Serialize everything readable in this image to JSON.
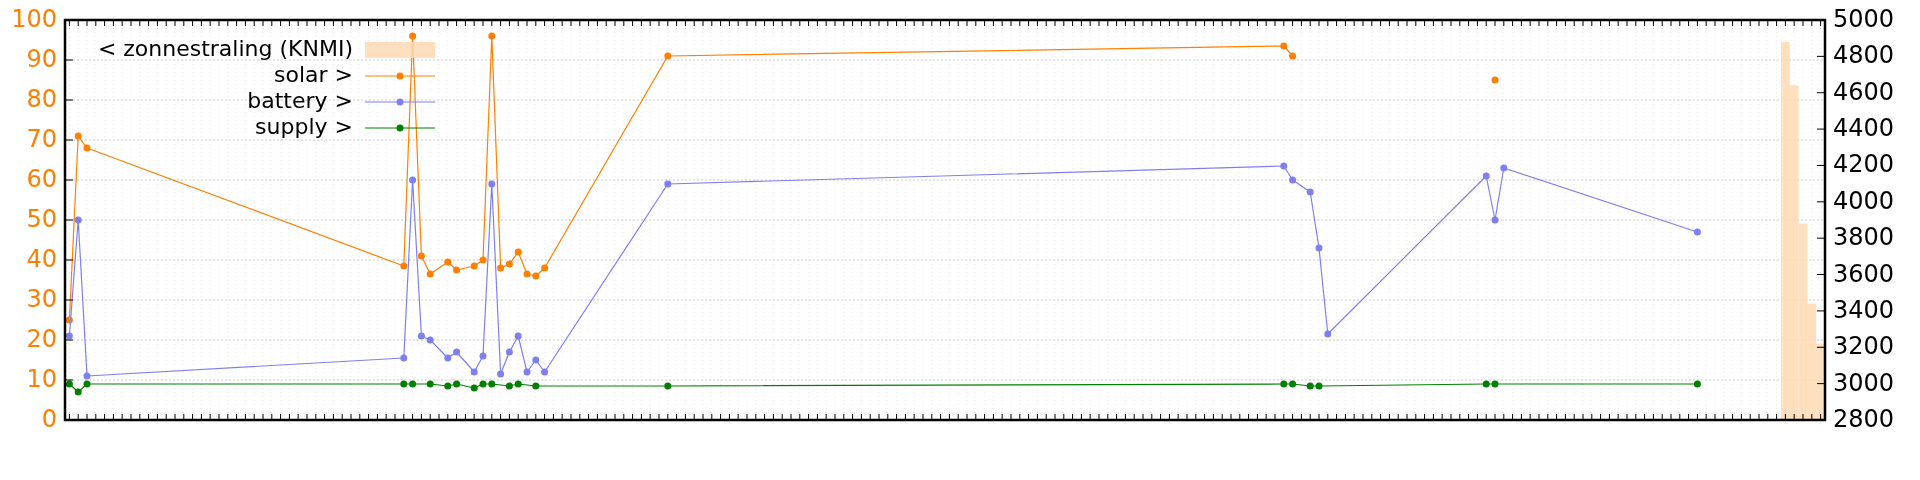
{
  "chart_data": {
    "type": "line",
    "categories": [
      null,
      null,
      null,
      null,
      null,
      null,
      null,
      null,
      null,
      null,
      null,
      null,
      null,
      null,
      null,
      null,
      null,
      null,
      null,
      null,
      null,
      null,
      null,
      null,
      null,
      null,
      null,
      null,
      null,
      null,
      null,
      null,
      null,
      null,
      null,
      null,
      null,
      null,
      null,
      null,
      null,
      null,
      null,
      null,
      null,
      null,
      null,
      null,
      null,
      null,
      null,
      null,
      null,
      null,
      null,
      null,
      null,
      null,
      null,
      null,
      null,
      null,
      null,
      null,
      null,
      null,
      null,
      null,
      null,
      null,
      null,
      null,
      null,
      null,
      null,
      null,
      null,
      null,
      null,
      null,
      null,
      null,
      null,
      null,
      null,
      null,
      null,
      null,
      null,
      null,
      null,
      null,
      null,
      null,
      null,
      null,
      null,
      null,
      null,
      null,
      null,
      null,
      null,
      null,
      null,
      null,
      null,
      null,
      null,
      null,
      null,
      null,
      null,
      null,
      null,
      null,
      null,
      null,
      null,
      null,
      null,
      null,
      null,
      null,
      null,
      null,
      null,
      null,
      null,
      null,
      null,
      null,
      null,
      null,
      null,
      null,
      null,
      null,
      null,
      null,
      null,
      null,
      null,
      null,
      null,
      null,
      null,
      null,
      null,
      null,
      null,
      null,
      null,
      null,
      null,
      null,
      null,
      null,
      null,
      null,
      null,
      null,
      null,
      null,
      null,
      null,
      null,
      null,
      null,
      null,
      null,
      null,
      null,
      null,
      null,
      null,
      null,
      null,
      null,
      null,
      null,
      null,
      null,
      null,
      null,
      null,
      null,
      null,
      null,
      null,
      null,
      null,
      null,
      null,
      null,
      null,
      null,
      null,
      null,
      null
    ],
    "series": [
      {
        "name": "< zonnestraling (KNMI)",
        "type": "bar",
        "axis": "y2",
        "color": "#ffd9b3",
        "values": [
          null,
          null,
          null,
          null,
          null,
          null,
          null,
          null,
          null,
          null,
          null,
          null,
          null,
          null,
          null,
          null,
          null,
          null,
          null,
          null,
          null,
          null,
          null,
          null,
          null,
          null,
          null,
          null,
          null,
          null,
          null,
          null,
          null,
          null,
          null,
          null,
          null,
          null,
          null,
          null,
          null,
          null,
          null,
          null,
          null,
          null,
          null,
          null,
          null,
          null,
          null,
          null,
          null,
          null,
          null,
          null,
          null,
          null,
          null,
          null,
          null,
          null,
          null,
          null,
          null,
          null,
          null,
          null,
          null,
          null,
          null,
          null,
          null,
          null,
          null,
          null,
          null,
          null,
          null,
          null,
          null,
          null,
          null,
          null,
          null,
          null,
          null,
          null,
          null,
          null,
          null,
          null,
          null,
          null,
          null,
          null,
          null,
          null,
          null,
          null,
          null,
          null,
          null,
          null,
          null,
          null,
          null,
          null,
          null,
          null,
          null,
          null,
          null,
          null,
          null,
          null,
          null,
          null,
          null,
          null,
          null,
          null,
          null,
          null,
          null,
          null,
          null,
          null,
          null,
          null,
          null,
          null,
          null,
          null,
          null,
          null,
          null,
          null,
          null,
          null,
          null,
          null,
          null,
          null,
          null,
          null,
          null,
          null,
          null,
          null,
          null,
          null,
          null,
          null,
          null,
          null,
          null,
          null,
          null,
          null,
          null,
          null,
          null,
          null,
          null,
          null,
          null,
          null,
          null,
          null,
          null,
          null,
          null,
          null,
          null,
          null,
          null,
          null,
          null,
          null,
          null,
          null,
          null,
          null,
          null,
          null,
          null,
          null,
          null,
          null,
          null,
          null,
          null,
          null,
          null,
          4880,
          4640,
          3880,
          3440,
          3220
        ]
      },
      {
        "name": "solar >",
        "color": "#ff7f00",
        "values": [
          25,
          71,
          68,
          null,
          null,
          null,
          null,
          null,
          null,
          null,
          null,
          null,
          null,
          null,
          null,
          null,
          null,
          null,
          null,
          null,
          null,
          null,
          null,
          null,
          null,
          null,
          null,
          null,
          null,
          null,
          null,
          null,
          null,
          null,
          null,
          null,
          null,
          null,
          38.5,
          96,
          41,
          36.5,
          null,
          39.5,
          37.5,
          null,
          38.5,
          40,
          96,
          38,
          39,
          42,
          36.5,
          36,
          38,
          null,
          null,
          null,
          null,
          null,
          null,
          null,
          null,
          null,
          null,
          null,
          null,
          null,
          91,
          null,
          null,
          null,
          null,
          null,
          null,
          null,
          null,
          null,
          null,
          null,
          null,
          null,
          null,
          null,
          null,
          null,
          null,
          null,
          null,
          null,
          null,
          null,
          null,
          null,
          null,
          null,
          null,
          null,
          null,
          null,
          null,
          null,
          null,
          null,
          null,
          null,
          null,
          null,
          null,
          null,
          null,
          null,
          null,
          null,
          null,
          null,
          null,
          null,
          null,
          null,
          null,
          null,
          null,
          null,
          null,
          null,
          null,
          null,
          null,
          null,
          null,
          null,
          null,
          null,
          null,
          null,
          null,
          null,
          93.5,
          91,
          null,
          null,
          null,
          null,
          null,
          null,
          null,
          null,
          null,
          null,
          null,
          null,
          null,
          null,
          null,
          null,
          null,
          null,
          null,
          null,
          null,
          null,
          null,
          null,
          null,
          null,
          null,
          null,
          null,
          null,
          null,
          null,
          null,
          null,
          null,
          null,
          null,
          null,
          null,
          null,
          null,
          null,
          null,
          null,
          null,
          null,
          null,
          null,
          null,
          null,
          null,
          null,
          null,
          null,
          null,
          null,
          null,
          null,
          null,
          null
        ]
      },
      {
        "name": "battery >",
        "color": "#7f7ff0",
        "values": [
          21,
          50,
          11,
          null,
          null,
          null,
          null,
          null,
          null,
          null,
          null,
          null,
          null,
          null,
          null,
          null,
          null,
          null,
          null,
          null,
          null,
          null,
          null,
          null,
          null,
          null,
          null,
          null,
          null,
          null,
          null,
          null,
          null,
          null,
          null,
          null,
          null,
          null,
          15.5,
          60,
          21,
          20,
          null,
          15.5,
          17,
          null,
          12,
          16,
          59,
          11.5,
          17,
          21,
          12,
          15,
          12,
          null,
          null,
          null,
          null,
          null,
          null,
          null,
          null,
          null,
          null,
          null,
          null,
          null,
          59,
          null,
          null,
          null,
          null,
          null,
          null,
          null,
          null,
          null,
          null,
          null,
          null,
          null,
          null,
          null,
          null,
          null,
          null,
          null,
          null,
          null,
          null,
          null,
          null,
          null,
          null,
          null,
          null,
          null,
          null,
          null,
          null,
          null,
          null,
          null,
          null,
          null,
          null,
          null,
          null,
          null,
          null,
          null,
          null,
          null,
          null,
          null,
          null,
          null,
          null,
          null,
          null,
          null,
          null,
          null,
          null,
          null,
          null,
          null,
          null,
          null,
          null,
          null,
          null,
          null,
          null,
          null,
          null,
          null,
          63.5,
          60,
          null,
          57,
          43,
          21.5,
          null,
          null,
          null,
          null,
          null,
          null,
          null,
          null,
          null,
          null,
          null,
          null,
          null,
          null,
          null,
          null,
          null,
          61,
          50,
          63,
          null,
          null,
          null,
          null,
          null,
          null,
          null,
          null,
          null,
          null,
          null,
          null,
          null,
          null,
          null,
          null,
          null,
          null,
          null,
          null,
          null,
          47,
          null,
          null,
          null,
          null,
          null,
          null,
          null,
          null,
          null,
          null,
          null,
          null,
          null,
          null
        ]
      },
      {
        "name": "supply >",
        "color": "#008000",
        "values": [
          9,
          7,
          9,
          null,
          null,
          null,
          null,
          null,
          null,
          null,
          null,
          null,
          null,
          null,
          null,
          null,
          null,
          null,
          null,
          null,
          null,
          null,
          null,
          null,
          null,
          null,
          null,
          null,
          null,
          null,
          null,
          null,
          null,
          null,
          null,
          null,
          null,
          null,
          9,
          9,
          null,
          9,
          null,
          8.5,
          9,
          null,
          8,
          9,
          9,
          null,
          8.5,
          9,
          null,
          8.5,
          null,
          null,
          null,
          null,
          null,
          null,
          null,
          null,
          null,
          null,
          null,
          null,
          null,
          null,
          8.5,
          null,
          null,
          null,
          null,
          null,
          null,
          null,
          null,
          null,
          null,
          null,
          null,
          null,
          null,
          null,
          null,
          null,
          null,
          null,
          null,
          null,
          null,
          null,
          null,
          null,
          null,
          null,
          null,
          null,
          null,
          null,
          null,
          null,
          null,
          null,
          null,
          null,
          null,
          null,
          null,
          null,
          null,
          null,
          null,
          null,
          null,
          null,
          null,
          null,
          null,
          null,
          null,
          null,
          null,
          null,
          null,
          null,
          null,
          null,
          null,
          null,
          null,
          null,
          null,
          null,
          null,
          null,
          null,
          null,
          9,
          9,
          null,
          8.5,
          8.5,
          null,
          null,
          null,
          null,
          null,
          null,
          null,
          null,
          null,
          null,
          null,
          null,
          null,
          null,
          null,
          null,
          null,
          null,
          9,
          9,
          null,
          null,
          null,
          null,
          null,
          null,
          null,
          null,
          null,
          null,
          null,
          null,
          null,
          null,
          null,
          null,
          null,
          null,
          null,
          null,
          null,
          null,
          9,
          null,
          null,
          null,
          null,
          null,
          null,
          null,
          null,
          null,
          null,
          null,
          null,
          null,
          null
        ]
      },
      {
        "type": "scatter",
        "color": "#ff7f00",
        "values": [
          null,
          null,
          null,
          null,
          null,
          null,
          null,
          null,
          null,
          null,
          null,
          null,
          null,
          null,
          null,
          null,
          null,
          null,
          null,
          null,
          null,
          null,
          null,
          null,
          null,
          null,
          null,
          null,
          null,
          null,
          null,
          null,
          null,
          null,
          null,
          null,
          null,
          null,
          null,
          null,
          null,
          null,
          null,
          null,
          null,
          null,
          null,
          null,
          null,
          null,
          null,
          null,
          null,
          null,
          null,
          null,
          null,
          null,
          null,
          null,
          null,
          null,
          null,
          null,
          null,
          null,
          null,
          null,
          null,
          null,
          null,
          null,
          null,
          null,
          null,
          null,
          null,
          null,
          null,
          null,
          null,
          null,
          null,
          null,
          null,
          null,
          null,
          null,
          null,
          null,
          null,
          null,
          null,
          null,
          null,
          null,
          null,
          null,
          null,
          null,
          null,
          null,
          null,
          null,
          null,
          null,
          null,
          null,
          null,
          null,
          null,
          null,
          null,
          null,
          null,
          null,
          null,
          null,
          null,
          null,
          null,
          null,
          null,
          null,
          null,
          null,
          null,
          null,
          null,
          null,
          null,
          null,
          null,
          null,
          null,
          null,
          null,
          null,
          null,
          null,
          null,
          null,
          null,
          null,
          null,
          null,
          null,
          null,
          null,
          null,
          null,
          null,
          null,
          null,
          null,
          null,
          null,
          null,
          null,
          null,
          null,
          null,
          85,
          null,
          null,
          null,
          null,
          null,
          null,
          null,
          null,
          null,
          null,
          null,
          null,
          null,
          null,
          null,
          null,
          null,
          null,
          null,
          null,
          null,
          null,
          null,
          null,
          null,
          null,
          null,
          null,
          null,
          null,
          null,
          null,
          null,
          null,
          null,
          null,
          null
        ]
      }
    ],
    "ylim": [
      0,
      100
    ],
    "yticks": [
      0,
      10,
      20,
      30,
      40,
      50,
      60,
      70,
      80,
      90,
      100
    ],
    "y2lim": [
      2800,
      5000
    ],
    "y2ticks": [
      2800,
      3000,
      3200,
      3400,
      3600,
      3800,
      4000,
      4200,
      4400,
      4600,
      4800,
      5000
    ],
    "grid": true,
    "legend": "top left",
    "marker": "circle",
    "line_style": "solid",
    "tick_labels": "y"
  }
}
